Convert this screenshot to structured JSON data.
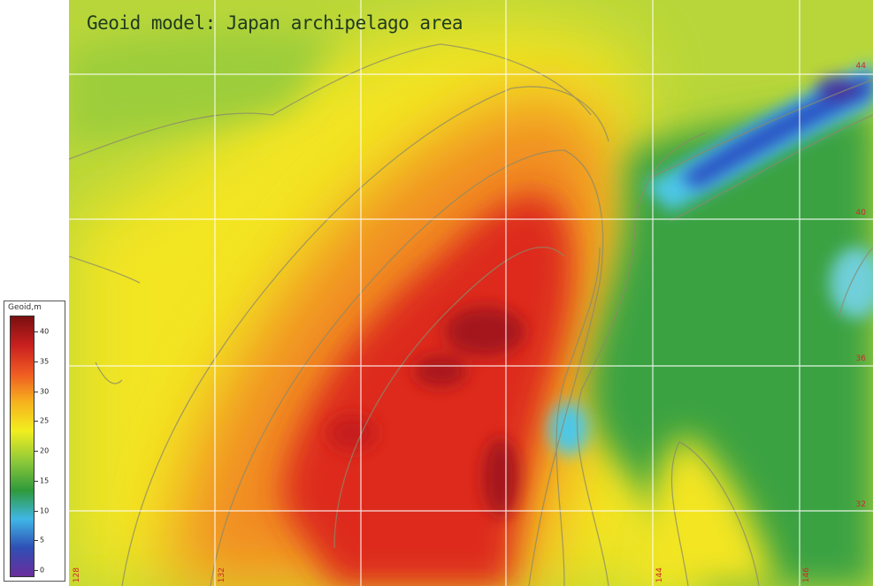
{
  "title": "Geoid model: Japan archipelago area",
  "legend": {
    "title": "Geoid,m",
    "ticks": [
      "40",
      "35",
      "30",
      "25",
      "20",
      "15",
      "10",
      "5",
      "0"
    ],
    "colors": [
      "#6b2d9c",
      "#2f4fb5",
      "#3fb6e6",
      "#2e9a3b",
      "#8cc83a",
      "#f2ee1e",
      "#f7b21e",
      "#ef5a22",
      "#c91f1f",
      "#7a1010"
    ]
  },
  "latitudes": [
    "44",
    "40",
    "36",
    "32"
  ],
  "longitudes": [
    "128",
    "132",
    "144",
    "146"
  ],
  "map_colors": {
    "red_core": "#b8161b",
    "red": "#df2c20",
    "orange": "#f08020",
    "yellow": "#f5e821",
    "lime": "#a4d036",
    "green": "#3da33e",
    "cyan": "#4ec7e6",
    "blue": "#2c52c4",
    "purple": "#4a2f95"
  }
}
